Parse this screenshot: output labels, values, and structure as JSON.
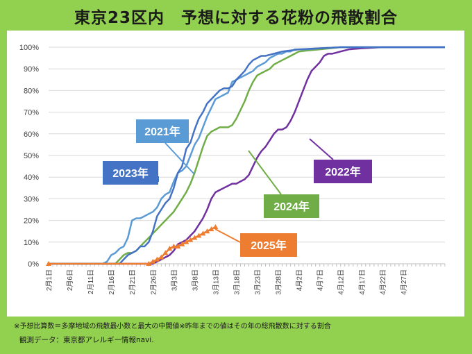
{
  "title": "東京23区内　予想に対する花粉の飛散割合",
  "notes": {
    "line1": "※予想比算数＝多摩地域の飛散最小数と最大の中間値※昨年までの値はその年の総飛散数に対する割合",
    "line2": "観測データ：東京都アレルギー情報navi."
  },
  "colors": {
    "2021": "#5B9BD5",
    "2022": "#7030A0",
    "2023": "#4472C4",
    "2024": "#70AD47",
    "2025": "#ED7D31",
    "background": "#92D050"
  },
  "chart_data": {
    "type": "line",
    "title": "東京23区内　予想に対する花粉の飛散割合",
    "xlabel": "",
    "ylabel": "",
    "ylim": [
      0,
      100
    ],
    "y_ticks": [
      "0%",
      "10%",
      "20%",
      "30%",
      "40%",
      "50%",
      "60%",
      "70%",
      "80%",
      "90%",
      "100%"
    ],
    "x_ticks": [
      "2月1日",
      "2月6日",
      "2月11日",
      "2月16日",
      "2月21日",
      "2月26日",
      "3月3日",
      "3月8日",
      "3月13日",
      "3月18日",
      "3月23日",
      "3月28日",
      "4月2日",
      "4月7日",
      "4月12日",
      "4月17日",
      "4月22日",
      "4月27日"
    ],
    "x_tick_index": [
      0,
      5,
      10,
      15,
      20,
      25,
      30,
      35,
      40,
      45,
      50,
      55,
      60,
      65,
      70,
      75,
      80,
      85
    ],
    "x_range_days": [
      0,
      95
    ],
    "grid": true,
    "legend": "callout boxes",
    "series": [
      {
        "name": "2021年",
        "color": "#5B9BD5",
        "points": [
          [
            0,
            0
          ],
          [
            13,
            0
          ],
          [
            14,
            1
          ],
          [
            15,
            4
          ],
          [
            16,
            5
          ],
          [
            17,
            7
          ],
          [
            18,
            8
          ],
          [
            19,
            12
          ],
          [
            20,
            20
          ],
          [
            21,
            21
          ],
          [
            22,
            21
          ],
          [
            23,
            22
          ],
          [
            24,
            23
          ],
          [
            25,
            24
          ],
          [
            26,
            26
          ],
          [
            27,
            30
          ],
          [
            28,
            32
          ],
          [
            29,
            33
          ],
          [
            30,
            38
          ],
          [
            31,
            42
          ],
          [
            32,
            43
          ],
          [
            33,
            45
          ],
          [
            34,
            50
          ],
          [
            35,
            55
          ],
          [
            36,
            58
          ],
          [
            37,
            63
          ],
          [
            38,
            68
          ],
          [
            39,
            72
          ],
          [
            40,
            76
          ],
          [
            41,
            77
          ],
          [
            42,
            78
          ],
          [
            43,
            79
          ],
          [
            44,
            84
          ],
          [
            45,
            85
          ],
          [
            46,
            86
          ],
          [
            47,
            87
          ],
          [
            48,
            88
          ],
          [
            49,
            89
          ],
          [
            50,
            91
          ],
          [
            51,
            92
          ],
          [
            52,
            93
          ],
          [
            53,
            95
          ],
          [
            54,
            96
          ],
          [
            55,
            97
          ],
          [
            56,
            97
          ],
          [
            57,
            98
          ],
          [
            58,
            98
          ],
          [
            59,
            99
          ],
          [
            60,
            99
          ],
          [
            62,
            99
          ],
          [
            65,
            99.5
          ],
          [
            70,
            100
          ],
          [
            95,
            100
          ]
        ]
      },
      {
        "name": "2022年",
        "color": "#7030A0",
        "points": [
          [
            0,
            0
          ],
          [
            24,
            0
          ],
          [
            25,
            0
          ],
          [
            26,
            1
          ],
          [
            27,
            2
          ],
          [
            28,
            3
          ],
          [
            29,
            4
          ],
          [
            30,
            6
          ],
          [
            31,
            9
          ],
          [
            32,
            10
          ],
          [
            33,
            11
          ],
          [
            34,
            13
          ],
          [
            35,
            15
          ],
          [
            36,
            18
          ],
          [
            37,
            21
          ],
          [
            38,
            25
          ],
          [
            39,
            30
          ],
          [
            40,
            33
          ],
          [
            41,
            34
          ],
          [
            42,
            35
          ],
          [
            43,
            36
          ],
          [
            44,
            37
          ],
          [
            45,
            37
          ],
          [
            46,
            38
          ],
          [
            47,
            39
          ],
          [
            48,
            41
          ],
          [
            49,
            45
          ],
          [
            50,
            49
          ],
          [
            51,
            52
          ],
          [
            52,
            54
          ],
          [
            53,
            57
          ],
          [
            54,
            60
          ],
          [
            55,
            62
          ],
          [
            56,
            62
          ],
          [
            57,
            63
          ],
          [
            58,
            66
          ],
          [
            59,
            70
          ],
          [
            60,
            75
          ],
          [
            61,
            80
          ],
          [
            62,
            85
          ],
          [
            63,
            89
          ],
          [
            64,
            91
          ],
          [
            65,
            93
          ],
          [
            66,
            96
          ],
          [
            67,
            97
          ],
          [
            68,
            97
          ],
          [
            69,
            97.5
          ],
          [
            70,
            98
          ],
          [
            71,
            98.5
          ],
          [
            72,
            99
          ],
          [
            75,
            99.5
          ],
          [
            80,
            100
          ],
          [
            95,
            100
          ]
        ]
      },
      {
        "name": "2023年",
        "color": "#4472C4",
        "points": [
          [
            0,
            0
          ],
          [
            17,
            0
          ],
          [
            18,
            2
          ],
          [
            19,
            4
          ],
          [
            20,
            5
          ],
          [
            21,
            6
          ],
          [
            22,
            8
          ],
          [
            23,
            8
          ],
          [
            24,
            10
          ],
          [
            25,
            15
          ],
          [
            26,
            22
          ],
          [
            27,
            25
          ],
          [
            28,
            28
          ],
          [
            29,
            30
          ],
          [
            30,
            35
          ],
          [
            31,
            42
          ],
          [
            32,
            45
          ],
          [
            33,
            53
          ],
          [
            34,
            56
          ],
          [
            35,
            62
          ],
          [
            36,
            67
          ],
          [
            37,
            70
          ],
          [
            38,
            74
          ],
          [
            39,
            76
          ],
          [
            40,
            78
          ],
          [
            41,
            80
          ],
          [
            42,
            81
          ],
          [
            43,
            81
          ],
          [
            44,
            82
          ],
          [
            45,
            85
          ],
          [
            46,
            87
          ],
          [
            47,
            89
          ],
          [
            48,
            92
          ],
          [
            49,
            94
          ],
          [
            50,
            95
          ],
          [
            51,
            96
          ],
          [
            52,
            96
          ],
          [
            53,
            96.5
          ],
          [
            54,
            97
          ],
          [
            55,
            97.5
          ],
          [
            56,
            98
          ],
          [
            58,
            98.5
          ],
          [
            60,
            99
          ],
          [
            65,
            99.5
          ],
          [
            70,
            100
          ],
          [
            95,
            100
          ]
        ]
      },
      {
        "name": "2024年",
        "color": "#70AD47",
        "points": [
          [
            0,
            0
          ],
          [
            16,
            0
          ],
          [
            17,
            2
          ],
          [
            18,
            4
          ],
          [
            19,
            5
          ],
          [
            20,
            5
          ],
          [
            21,
            6
          ],
          [
            22,
            8
          ],
          [
            23,
            10
          ],
          [
            24,
            12
          ],
          [
            25,
            14
          ],
          [
            26,
            16
          ],
          [
            27,
            18
          ],
          [
            28,
            20
          ],
          [
            29,
            22
          ],
          [
            30,
            24
          ],
          [
            31,
            27
          ],
          [
            32,
            30
          ],
          [
            33,
            33
          ],
          [
            34,
            37
          ],
          [
            35,
            42
          ],
          [
            36,
            48
          ],
          [
            37,
            54
          ],
          [
            38,
            59
          ],
          [
            39,
            61
          ],
          [
            40,
            62
          ],
          [
            41,
            63
          ],
          [
            42,
            63
          ],
          [
            43,
            63
          ],
          [
            44,
            64
          ],
          [
            45,
            67
          ],
          [
            46,
            71
          ],
          [
            47,
            75
          ],
          [
            48,
            80
          ],
          [
            49,
            84
          ],
          [
            50,
            87
          ],
          [
            51,
            88
          ],
          [
            52,
            89
          ],
          [
            53,
            90
          ],
          [
            54,
            92
          ],
          [
            55,
            93
          ],
          [
            56,
            94
          ],
          [
            57,
            95
          ],
          [
            58,
            96
          ],
          [
            59,
            97
          ],
          [
            60,
            98
          ],
          [
            62,
            98.5
          ],
          [
            65,
            99
          ],
          [
            70,
            100
          ],
          [
            95,
            100
          ]
        ]
      },
      {
        "name": "2025年",
        "color": "#ED7D31",
        "points": [
          [
            0,
            0
          ],
          [
            24,
            0
          ],
          [
            25,
            1
          ],
          [
            26,
            2
          ],
          [
            27,
            3
          ],
          [
            28,
            5
          ],
          [
            29,
            7
          ],
          [
            30,
            8
          ],
          [
            31,
            8
          ],
          [
            32,
            9
          ],
          [
            33,
            10
          ],
          [
            34,
            11
          ],
          [
            35,
            12
          ],
          [
            36,
            13
          ],
          [
            37,
            14
          ],
          [
            38,
            15
          ],
          [
            39,
            16
          ],
          [
            40,
            17
          ]
        ]
      }
    ]
  }
}
